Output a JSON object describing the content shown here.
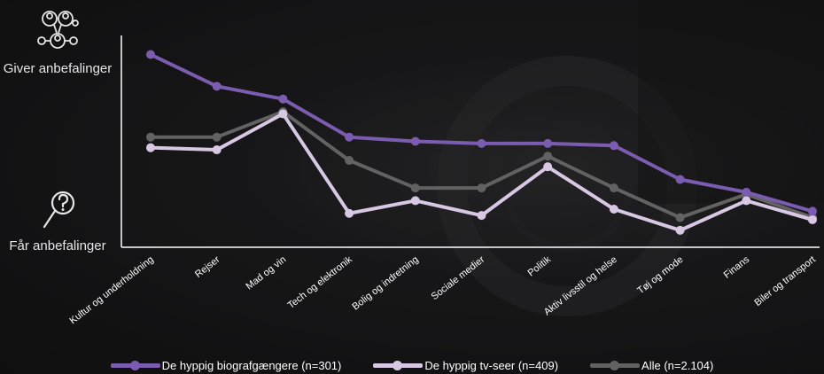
{
  "side": {
    "top_label": "Giver anbefalinger",
    "top_icon": "people-network-icon",
    "bottom_label": "Får anbefalinger",
    "bottom_icon": "magnifier-question-icon"
  },
  "chart_data": {
    "type": "line",
    "categories": [
      "Kultur og underholdning",
      "Rejser",
      "Mad og vin",
      "Tech og elektronik",
      "Bolig og indretning",
      "Sociale medier",
      "Politik",
      "Aktiv livsstil og helse",
      "Tøj og mode",
      "Finans",
      "Biler og transport"
    ],
    "ylim": [
      0,
      100
    ],
    "grid": false,
    "legend_position": "bottom",
    "series": [
      {
        "name": "De hyppig biografgængere (n=301)",
        "color": "#7b5cb0",
        "values": [
          91,
          76,
          70,
          52,
          50,
          49,
          49,
          48,
          32,
          26,
          17
        ]
      },
      {
        "name": "De hyppig tv-seer (n=409)",
        "color": "#d9c8e3",
        "values": [
          47,
          46,
          63,
          16,
          22,
          15,
          38,
          18,
          8,
          22,
          13
        ]
      },
      {
        "name": "Alle (n=2.104)",
        "color": "#626262",
        "values": [
          52,
          52,
          64,
          41,
          28,
          28,
          43,
          28,
          14,
          25,
          14
        ]
      }
    ]
  }
}
